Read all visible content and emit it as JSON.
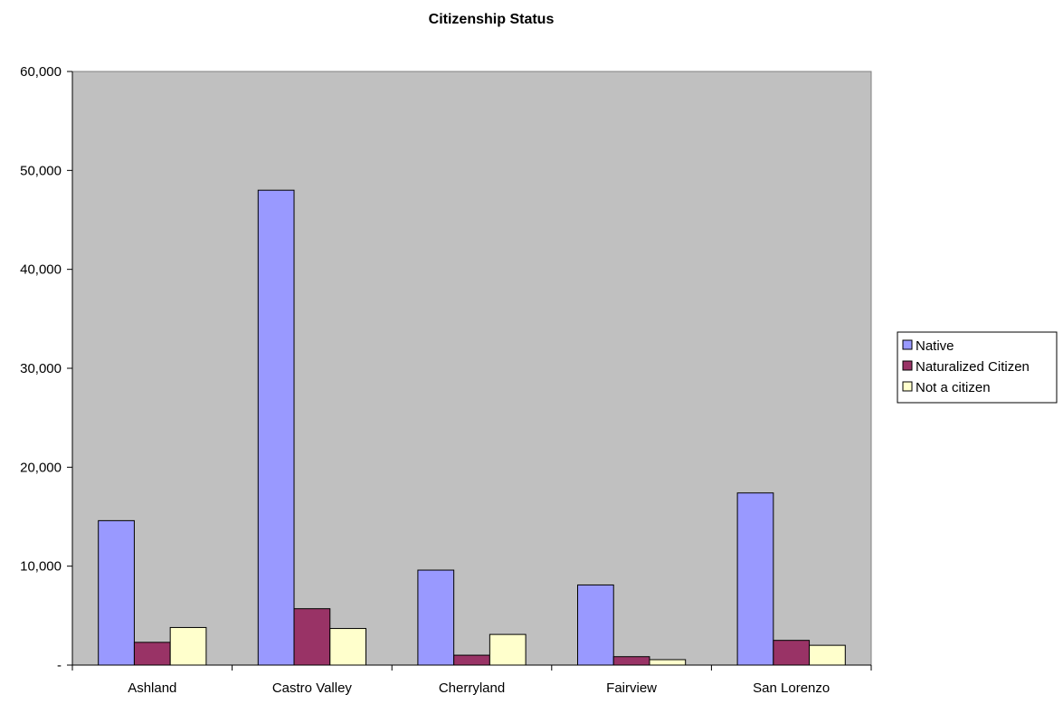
{
  "chart_data": {
    "type": "bar",
    "title": "Citizenship Status",
    "xlabel": "",
    "ylabel": "",
    "categories": [
      "Ashland",
      "Castro Valley",
      "Cherryland",
      "Fairview",
      "San Lorenzo"
    ],
    "series": [
      {
        "name": "Native",
        "color": "#9999ff",
        "values": [
          14600,
          48000,
          9600,
          8100,
          17400
        ]
      },
      {
        "name": "Naturalized Citizen",
        "color": "#993366",
        "values": [
          2300,
          5700,
          1000,
          850,
          2500
        ]
      },
      {
        "name": "Not a citizen",
        "color": "#ffffcc",
        "values": [
          3800,
          3700,
          3100,
          550,
          2000
        ]
      }
    ],
    "ylim": [
      0,
      60000
    ],
    "y_ticks": [
      {
        "value": 0,
        "label": "-"
      },
      {
        "value": 10000,
        "label": "10,000"
      },
      {
        "value": 20000,
        "label": "20,000"
      },
      {
        "value": 30000,
        "label": "30,000"
      },
      {
        "value": 40000,
        "label": "40,000"
      },
      {
        "value": 50000,
        "label": "50,000"
      },
      {
        "value": 60000,
        "label": "60,000"
      }
    ],
    "grid": false,
    "plot_background": "#c0c0c0",
    "legend_position": "right"
  }
}
